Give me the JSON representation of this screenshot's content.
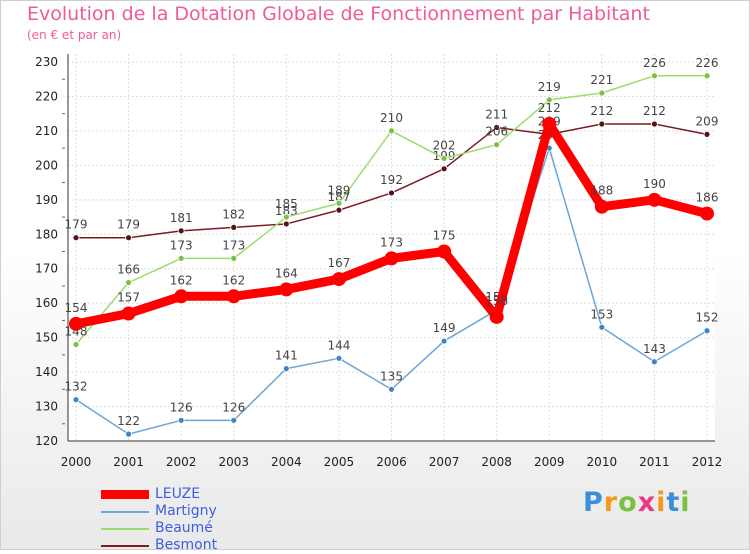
{
  "title": "Evolution de la Dotation Globale de Fonctionnement par Habitant",
  "subtitle": "(en € et par an)",
  "logo": {
    "letters": [
      {
        "ch": "P",
        "color": "#3a8fd8"
      },
      {
        "ch": "r",
        "color": "#f39a1e"
      },
      {
        "ch": "o",
        "color": "#7ac143"
      },
      {
        "ch": "x",
        "color": "#e63a87"
      },
      {
        "ch": "i",
        "color": "#f39a1e"
      },
      {
        "ch": "t",
        "color": "#3a8fd8"
      },
      {
        "ch": "i",
        "color": "#7ac143"
      }
    ]
  },
  "chart_data": {
    "type": "line",
    "title": "Evolution de la Dotation Globale de Fonctionnement par Habitant",
    "ylabel": "(en € et par an)",
    "x": [
      "2000",
      "2001",
      "2002",
      "2003",
      "2004",
      "2005",
      "2006",
      "2007",
      "2008",
      "2009",
      "2010",
      "2011",
      "2012"
    ],
    "ylim": [
      120,
      230
    ],
    "yticks": [
      120,
      130,
      140,
      150,
      160,
      170,
      180,
      190,
      200,
      210,
      220,
      230
    ],
    "grid": true,
    "legend": "bottom-left",
    "series": [
      {
        "name": "Besmont",
        "color": "#7a1c24",
        "marker": "#5a1018",
        "values": [
          179,
          179,
          181,
          182,
          183,
          187,
          192,
          199,
          211,
          209,
          212,
          212,
          209
        ],
        "labels": [
          "179",
          "179",
          "181",
          "182",
          "183",
          "187",
          "192",
          "199",
          "211",
          "209",
          "212",
          "212",
          "209"
        ]
      },
      {
        "name": "Beaumé",
        "color": "#9ddc6c",
        "marker": "#7ac143",
        "values": [
          148,
          166,
          173,
          173,
          185,
          189,
          210,
          202,
          206,
          219,
          221,
          226,
          226
        ],
        "labels": [
          "148",
          "166",
          "173",
          "173",
          "185",
          "189",
          "210",
          "202",
          "206",
          "219",
          "221",
          "226",
          "226"
        ]
      },
      {
        "name": "Martigny",
        "color": "#6aa6d8",
        "marker": "#3f84c6",
        "values": [
          132,
          122,
          126,
          126,
          141,
          144,
          135,
          149,
          158,
          205,
          153,
          143,
          152
        ],
        "labels": [
          "132",
          "122",
          "126",
          "126",
          "141",
          "144",
          "135",
          "149",
          "158",
          "205",
          "153",
          "143",
          "152"
        ]
      },
      {
        "name": "LEUZE",
        "color": "#ff0000",
        "marker": "#ff0000",
        "values": [
          154,
          157,
          162,
          162,
          164,
          167,
          173,
          175,
          156,
          212,
          188,
          190,
          186
        ],
        "labels": [
          "154",
          "157",
          "162",
          "162",
          "164",
          "167",
          "173",
          "175",
          "156",
          "212",
          "188",
          "190",
          "186"
        ]
      }
    ],
    "legend_order": [
      "LEUZE",
      "Martigny",
      "Beaumé",
      "Besmont"
    ]
  }
}
